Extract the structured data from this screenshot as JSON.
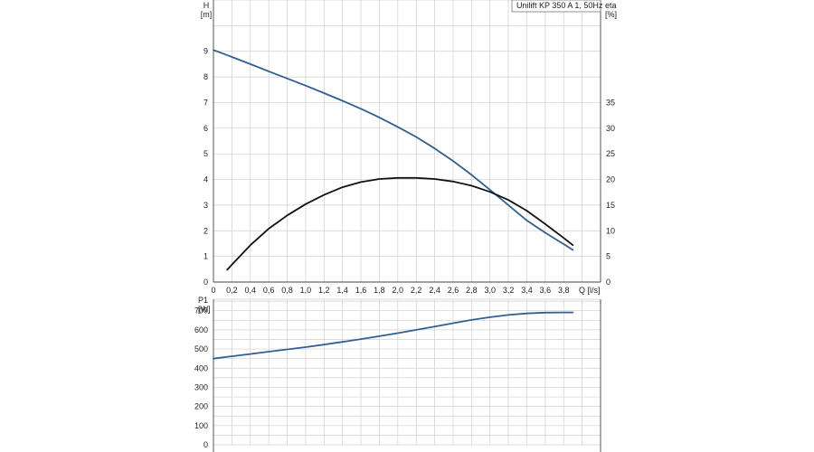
{
  "chart_data": [
    {
      "name": "head-and-efficiency",
      "type": "line",
      "legend": "Unilift KP 350 A 1, 50Hz",
      "legend_position": "top-right",
      "ylabel": [
        "H",
        "[m]"
      ],
      "y2label": [
        "eta",
        "[%]"
      ],
      "xlabel": "Q [l/s]",
      "xlim": [
        0,
        4.2
      ],
      "ylim": [
        0,
        11
      ],
      "y2lim": [
        0,
        55
      ],
      "grid": true,
      "xticks": [
        "0",
        "0,2",
        "0,4",
        "0,6",
        "0,8",
        "1,0",
        "1,2",
        "1,4",
        "1,6",
        "1,8",
        "2,0",
        "2,2",
        "2,4",
        "2,6",
        "2,8",
        "3,0",
        "3,2",
        "3,4",
        "3,6",
        "3,8"
      ],
      "yticks": [
        "0",
        "1",
        "2",
        "3",
        "4",
        "5",
        "6",
        "7",
        "8",
        "9"
      ],
      "y2ticks": [
        "0",
        "5",
        "10",
        "15",
        "20",
        "25",
        "30",
        "35"
      ],
      "series": [
        {
          "axis": "left",
          "color": "#2f5f93",
          "x": [
            0,
            0.2,
            0.4,
            0.6,
            0.8,
            1.0,
            1.2,
            1.4,
            1.6,
            1.8,
            2.0,
            2.2,
            2.4,
            2.6,
            2.8,
            3.0,
            3.2,
            3.4,
            3.6,
            3.8,
            3.9
          ],
          "y": [
            9.05,
            8.78,
            8.5,
            8.22,
            7.94,
            7.66,
            7.37,
            7.07,
            6.76,
            6.42,
            6.05,
            5.66,
            5.21,
            4.72,
            4.18,
            3.6,
            3.0,
            2.4,
            1.92,
            1.48,
            1.25
          ]
        },
        {
          "axis": "right",
          "color": "#111111",
          "x": [
            0.15,
            0.2,
            0.4,
            0.6,
            0.8,
            1.0,
            1.2,
            1.4,
            1.6,
            1.8,
            2.0,
            2.2,
            2.4,
            2.6,
            2.8,
            3.0,
            3.2,
            3.4,
            3.6,
            3.8,
            3.9
          ],
          "y": [
            2.4,
            3.4,
            7.2,
            10.4,
            13.0,
            15.2,
            17.0,
            18.5,
            19.5,
            20.1,
            20.3,
            20.3,
            20.1,
            19.6,
            18.8,
            17.6,
            16.0,
            13.9,
            11.3,
            8.6,
            7.2
          ]
        }
      ]
    },
    {
      "name": "power",
      "type": "line",
      "ylabel": [
        "P1",
        "[W]"
      ],
      "xlim": [
        0,
        4.2
      ],
      "ylim": [
        0,
        760
      ],
      "grid": true,
      "yticks": [
        "0",
        "100",
        "200",
        "300",
        "400",
        "500",
        "600",
        "700"
      ],
      "series": [
        {
          "axis": "left",
          "color": "#2f5f93",
          "x": [
            0,
            0.2,
            0.4,
            0.6,
            0.8,
            1.0,
            1.2,
            1.4,
            1.6,
            1.8,
            2.0,
            2.2,
            2.4,
            2.6,
            2.8,
            3.0,
            3.2,
            3.4,
            3.6,
            3.8,
            3.9
          ],
          "y": [
            450,
            462,
            474,
            486,
            498,
            510,
            523,
            537,
            552,
            567,
            583,
            600,
            617,
            635,
            652,
            666,
            678,
            686,
            690,
            691,
            691
          ]
        }
      ]
    }
  ]
}
